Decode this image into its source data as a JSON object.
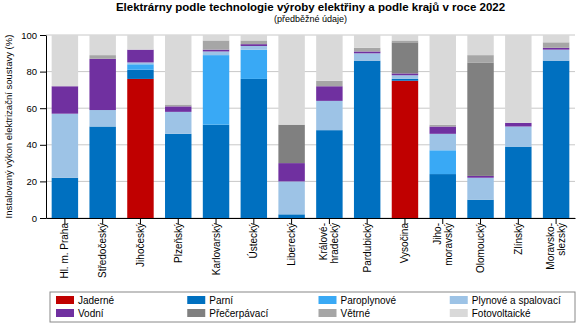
{
  "chart_data": {
    "type": "bar",
    "stacked": true,
    "title": "Elektrárny podle technologie výroby elektřiny a podle krajů v roce 2022",
    "subtitle": "(předběžné údaje)",
    "y_label": "Instalovaný výkon elektrizační soustavy (%)",
    "categories": [
      "Hl. m. Praha",
      "Středočeský",
      "Jihočeský",
      "Plzeňský",
      "Karlovarský",
      "Ústecký",
      "Liberecký",
      "Králové-\nhradecký",
      "Pardubický",
      "Vysočina",
      "Jiho-\nmoravský",
      "Olomoucký",
      "Zlínský",
      "Moravsko-\nslezský"
    ],
    "series": [
      {
        "name": "Jaderné",
        "color": "#c00000",
        "values": [
          0,
          0,
          76,
          0,
          0,
          0,
          0,
          0,
          0,
          75,
          0,
          0,
          0,
          0
        ]
      },
      {
        "name": "Parní",
        "color": "#0070c0",
        "values": [
          22,
          50,
          5,
          46,
          51,
          76,
          2,
          48,
          86,
          1,
          24,
          10,
          39,
          86
        ]
      },
      {
        "name": "Paroplynové",
        "color": "#39a9f5",
        "values": [
          0,
          0,
          3,
          0,
          38,
          16,
          0,
          0,
          0,
          0,
          13,
          0,
          0,
          0
        ]
      },
      {
        "name": "Plynové a spalovací",
        "color": "#9dc3e6",
        "values": [
          35,
          9,
          1,
          12,
          2,
          2,
          18,
          16,
          4,
          2,
          9,
          12,
          11,
          6
        ]
      },
      {
        "name": "Vodní",
        "color": "#7030a0",
        "values": [
          15,
          28,
          7,
          3,
          1,
          1,
          10,
          8,
          1,
          1,
          4,
          1,
          2,
          1
        ]
      },
      {
        "name": "Přečerpávací",
        "color": "#808080",
        "values": [
          0,
          0,
          0,
          0,
          0,
          0,
          21,
          0,
          0,
          17,
          0,
          62,
          0,
          0
        ]
      },
      {
        "name": "Větrné",
        "color": "#a6a6a6",
        "values": [
          0,
          2,
          0,
          1,
          5,
          2,
          0,
          3,
          2,
          1,
          1,
          4,
          0,
          3
        ]
      },
      {
        "name": "Fotovoltaické",
        "color": "#d9d9d9",
        "values": [
          28,
          11,
          8,
          38,
          3,
          3,
          49,
          25,
          7,
          3,
          49,
          11,
          48,
          4
        ]
      }
    ],
    "ylim": [
      0,
      100
    ],
    "yticks": [
      0,
      20,
      40,
      60,
      80,
      100
    ],
    "grid": true,
    "legend": "bottom"
  }
}
